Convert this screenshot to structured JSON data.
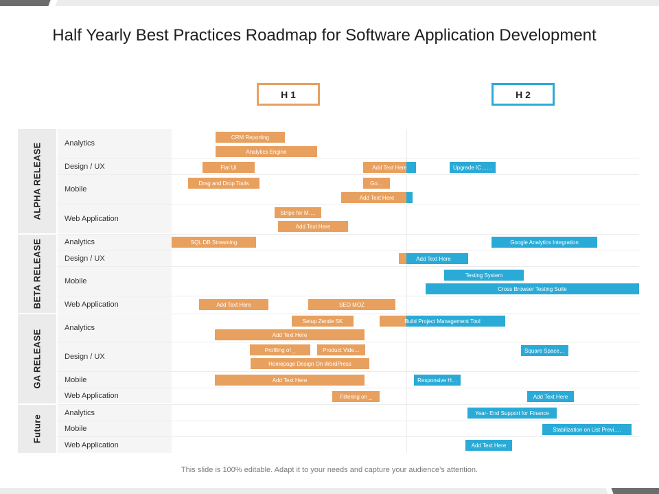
{
  "title": "Half Yearly Best Practices Roadmap for Software Application Development",
  "columns": {
    "h1": "H 1",
    "h2": "H 2"
  },
  "colors": {
    "h1_accent": "#e8a05f",
    "h2_accent": "#2aaad6",
    "panel": "#ebebeb"
  },
  "phases": [
    {
      "label": "ALPHA RELEASE",
      "rows": [
        "Analytics",
        "Design / UX",
        "Mobile",
        "Web Application"
      ]
    },
    {
      "label": "BETA RELEASE",
      "rows": [
        "Analytics",
        "Design / UX",
        "Mobile",
        "Web Application"
      ]
    },
    {
      "label": "GA RELEASE",
      "rows": [
        "Analytics",
        "Design / UX",
        "Mobile",
        "Web Application"
      ]
    },
    {
      "label": "Future",
      "rows": [
        "Analytics",
        "Mobile",
        "Web Application"
      ]
    }
  ],
  "tasks": [
    "CRM Reporting",
    "Analytics Engine",
    "Flat UI",
    "Add Text Here",
    "Upgrade IC……",
    "Drag and Drop Tools",
    "Go…",
    "Add Text Here",
    "Stripe for M….",
    "Add Text Here",
    "SQL DB Streaming",
    "Google Analytics Integration",
    "Add Text Here",
    "Testing System",
    "Cross Browser Testing Suite",
    "Add Text Here",
    "SEO MOZ",
    "Setup Zende SK",
    "Build Project Management  Tool",
    "Add Text Here",
    "Profiling of _",
    "Product Vide…",
    "Square Space…",
    "Homepage Design On WordPress",
    "Add Text Here",
    "Responsive H…",
    "Filtering on _",
    "Add Text Here",
    "Year- End Support for Finance",
    "Stabilization  on List Previ….",
    "Add Text Here"
  ],
  "footer": "This slide is 100% editable. Adapt it to your needs and capture your audience’s attention."
}
